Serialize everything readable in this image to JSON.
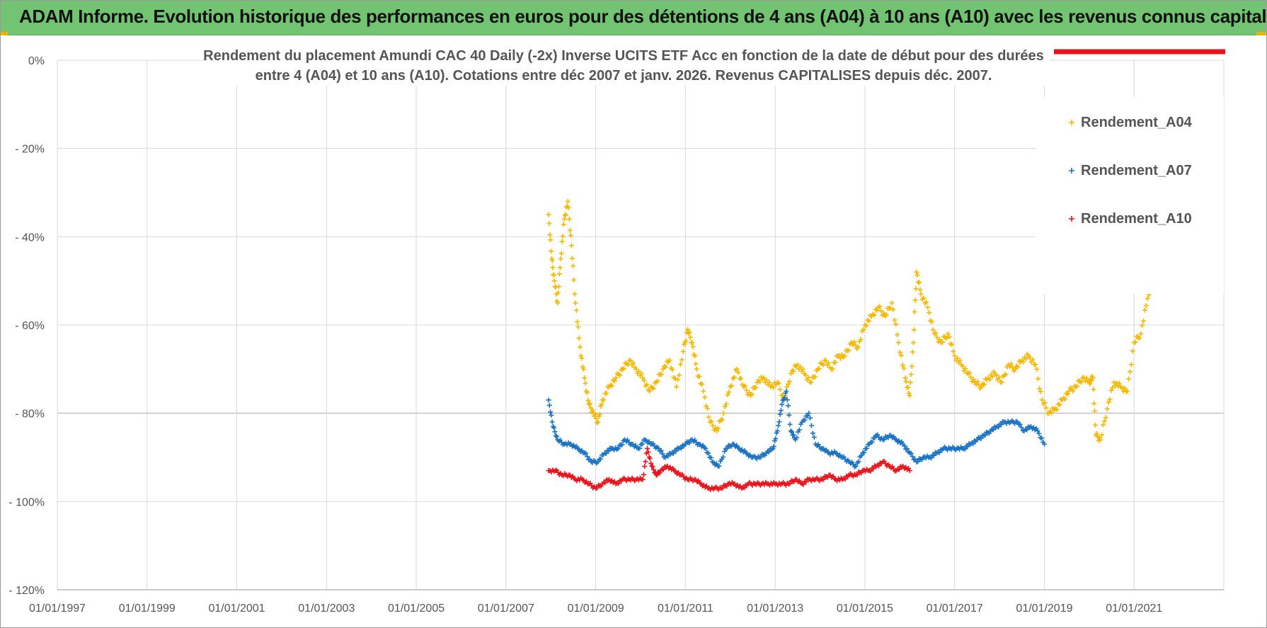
{
  "header": {
    "title": "ADAM Informe. Evolution historique des performances en euros pour des détentions de 4 ans (A04) à 10 ans (A10) avec les revenus connus capitalisés"
  },
  "chart_data": {
    "type": "scatter",
    "title_lines": [
      "Rendement du placement Amundi CAC 40 Daily (-2x) Inverse UCITS ETF Acc en fonction de la date de début pour des durées",
      "entre 4 (A04) et 10 ans (A10). Cotations entre déc 2007 et janv. 2026. Revenus CAPITALISES depuis déc. 2007."
    ],
    "xlabel": "",
    "ylabel": "",
    "xlim": [
      1997.0,
      2023.0
    ],
    "ylim": [
      -120,
      0
    ],
    "y_ticks": [
      {
        "value": 0,
        "label": "0%"
      },
      {
        "value": -20,
        "label": "- 20%"
      },
      {
        "value": -40,
        "label": "- 40%"
      },
      {
        "value": -60,
        "label": "- 60%"
      },
      {
        "value": -80,
        "label": "- 80%"
      },
      {
        "value": -100,
        "label": "- 100%"
      },
      {
        "value": -120,
        "label": "- 120%"
      }
    ],
    "x_ticks": [
      {
        "value": 1997,
        "label": "01/01/1997"
      },
      {
        "value": 1999,
        "label": "01/01/1999"
      },
      {
        "value": 2001,
        "label": "01/01/2001"
      },
      {
        "value": 2003,
        "label": "01/01/2003"
      },
      {
        "value": 2005,
        "label": "01/01/2005"
      },
      {
        "value": 2007,
        "label": "01/01/2007"
      },
      {
        "value": 2009,
        "label": "01/01/2009"
      },
      {
        "value": 2011,
        "label": "01/01/2011"
      },
      {
        "value": 2013,
        "label": "01/01/2013"
      },
      {
        "value": 2015,
        "label": "01/01/2015"
      },
      {
        "value": 2017,
        "label": "01/01/2017"
      },
      {
        "value": 2019,
        "label": "01/01/2019"
      },
      {
        "value": 2021,
        "label": "01/01/2021"
      }
    ],
    "grid": true,
    "legend_position": "right",
    "series": [
      {
        "name": "Rendement_A04",
        "color": "#f5b800",
        "x": [
          2007.95,
          2008.02,
          2008.08,
          2008.15,
          2008.22,
          2008.3,
          2008.38,
          2008.46,
          2008.55,
          2008.65,
          2008.75,
          2008.85,
          2008.95,
          2009.05,
          2009.15,
          2009.3,
          2009.45,
          2009.6,
          2009.75,
          2009.9,
          2010.05,
          2010.2,
          2010.35,
          2010.5,
          2010.65,
          2010.8,
          2010.95,
          2011.05,
          2011.15,
          2011.25,
          2011.4,
          2011.55,
          2011.7,
          2011.85,
          2012.0,
          2012.15,
          2012.3,
          2012.45,
          2012.6,
          2012.75,
          2012.9,
          2013.05,
          2013.2,
          2013.35,
          2013.5,
          2013.65,
          2013.8,
          2013.95,
          2014.1,
          2014.25,
          2014.4,
          2014.55,
          2014.7,
          2014.85,
          2015.0,
          2015.15,
          2015.3,
          2015.45,
          2015.6,
          2015.75,
          2015.9,
          2016.0,
          2016.08,
          2016.15,
          2016.25,
          2016.4,
          2016.55,
          2016.7,
          2016.85,
          2017.0,
          2017.15,
          2017.3,
          2017.45,
          2017.6,
          2017.75,
          2017.9,
          2018.05,
          2018.2,
          2018.35,
          2018.5,
          2018.65,
          2018.8,
          2018.95,
          2019.1,
          2019.25,
          2019.4,
          2019.55,
          2019.7,
          2019.85,
          2020.0,
          2020.08,
          2020.15,
          2020.25,
          2020.4,
          2020.55,
          2020.7,
          2020.85,
          2021.0,
          2021.15,
          2021.3,
          2021.45,
          2021.6,
          2021.75,
          2021.9,
          2022.0
        ],
        "values": [
          -35,
          -45,
          -50,
          -55,
          -45,
          -36,
          -32,
          -42,
          -55,
          -65,
          -72,
          -78,
          -80,
          -82,
          -77,
          -74,
          -72,
          -70,
          -68,
          -70,
          -72,
          -75,
          -73,
          -70,
          -68,
          -74,
          -66,
          -61,
          -64,
          -70,
          -75,
          -82,
          -84,
          -80,
          -74,
          -70,
          -74,
          -76,
          -73,
          -72,
          -74,
          -73,
          -77,
          -71,
          -69,
          -71,
          -73,
          -70,
          -68,
          -70,
          -67,
          -67,
          -64,
          -65,
          -60,
          -58,
          -56,
          -58,
          -55,
          -64,
          -72,
          -76,
          -64,
          -48,
          -53,
          -56,
          -62,
          -64,
          -62,
          -67,
          -69,
          -71,
          -73,
          -74,
          -72,
          -71,
          -73,
          -69,
          -70,
          -68,
          -67,
          -69,
          -77,
          -80,
          -79,
          -77,
          -75,
          -74,
          -72,
          -73,
          -72,
          -85,
          -86,
          -79,
          -73,
          -74,
          -75,
          -64,
          -62,
          -54,
          -47,
          -52,
          -50,
          -49,
          -47
        ]
      },
      {
        "name": "Rendement_A07",
        "color": "#1a73c2",
        "x": [
          2007.95,
          2008.05,
          2008.15,
          2008.3,
          2008.45,
          2008.6,
          2008.75,
          2008.9,
          2009.05,
          2009.2,
          2009.35,
          2009.5,
          2009.65,
          2009.8,
          2009.95,
          2010.1,
          2010.25,
          2010.4,
          2010.55,
          2010.7,
          2010.85,
          2011.0,
          2011.15,
          2011.3,
          2011.45,
          2011.6,
          2011.75,
          2011.9,
          2012.05,
          2012.2,
          2012.35,
          2012.5,
          2012.65,
          2012.8,
          2012.95,
          2013.05,
          2013.15,
          2013.25,
          2013.35,
          2013.45,
          2013.6,
          2013.75,
          2013.9,
          2014.05,
          2014.2,
          2014.35,
          2014.5,
          2014.65,
          2014.8,
          2014.95,
          2015.1,
          2015.25,
          2015.4,
          2015.55,
          2015.7,
          2015.85,
          2016.0,
          2016.15,
          2016.3,
          2016.45,
          2016.6,
          2016.75,
          2016.9,
          2017.05,
          2017.2,
          2017.35,
          2017.5,
          2017.65,
          2017.8,
          2017.95,
          2018.1,
          2018.25,
          2018.4,
          2018.55,
          2018.7,
          2018.85,
          2019.0
        ],
        "values": [
          -77,
          -83,
          -86,
          -87,
          -87,
          -88,
          -89,
          -91,
          -91,
          -89,
          -88,
          -88,
          -86,
          -87,
          -88,
          -86,
          -87,
          -88,
          -90,
          -89,
          -88,
          -87,
          -86,
          -87,
          -88,
          -91,
          -92,
          -88,
          -87,
          -88,
          -89,
          -90,
          -90,
          -89,
          -88,
          -84,
          -78,
          -75,
          -84,
          -86,
          -82,
          -80,
          -87,
          -88,
          -89,
          -89,
          -90,
          -91,
          -92,
          -89,
          -87,
          -85,
          -86,
          -85,
          -86,
          -87,
          -89,
          -91,
          -90,
          -90,
          -89,
          -88,
          -88,
          -88,
          -88,
          -87,
          -86,
          -85,
          -84,
          -83,
          -82,
          -82,
          -82,
          -84,
          -83,
          -84,
          -87
        ]
      },
      {
        "name": "Rendement_A10",
        "color": "#e8141c",
        "x": [
          2007.95,
          2008.1,
          2008.25,
          2008.4,
          2008.55,
          2008.7,
          2008.85,
          2009.0,
          2009.15,
          2009.3,
          2009.45,
          2009.6,
          2009.75,
          2009.9,
          2010.05,
          2010.15,
          2010.25,
          2010.35,
          2010.45,
          2010.6,
          2010.75,
          2010.9,
          2011.05,
          2011.2,
          2011.35,
          2011.5,
          2011.65,
          2011.8,
          2011.95,
          2012.1,
          2012.25,
          2012.4,
          2012.55,
          2012.7,
          2012.85,
          2013.0,
          2013.15,
          2013.3,
          2013.45,
          2013.6,
          2013.75,
          2013.9,
          2014.05,
          2014.2,
          2014.35,
          2014.5,
          2014.65,
          2014.8,
          2014.95,
          2015.1,
          2015.25,
          2015.4,
          2015.55,
          2015.7,
          2015.85,
          2016.0
        ],
        "values": [
          -93,
          -93,
          -94,
          -94,
          -95,
          -95,
          -96,
          -97,
          -96,
          -95,
          -96,
          -95,
          -95,
          -95,
          -95,
          -88,
          -92,
          -94,
          -93,
          -92,
          -93,
          -94,
          -95,
          -95,
          -96,
          -97,
          -97,
          -97,
          -96,
          -96,
          -97,
          -96,
          -96,
          -96,
          -96,
          -96,
          -96,
          -96,
          -95,
          -96,
          -95,
          -95,
          -95,
          -94,
          -95,
          -95,
          -94,
          -94,
          -93,
          -93,
          -92,
          -91,
          -92,
          -93,
          -92,
          -93
        ]
      }
    ]
  }
}
